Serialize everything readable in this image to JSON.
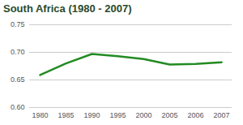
{
  "chart_data": {
    "type": "line",
    "title": "South Africa (1980 - 2007)",
    "categories": [
      "1980",
      "1985",
      "1990",
      "1995",
      "2000",
      "2005",
      "2006",
      "2007"
    ],
    "values": [
      0.659,
      0.68,
      0.697,
      0.693,
      0.688,
      0.678,
      0.679,
      0.682
    ],
    "color": "#228b22",
    "ylim": [
      0.6,
      0.75
    ],
    "yticks": [
      0.6,
      0.65,
      0.7,
      0.75
    ],
    "grid": true
  }
}
